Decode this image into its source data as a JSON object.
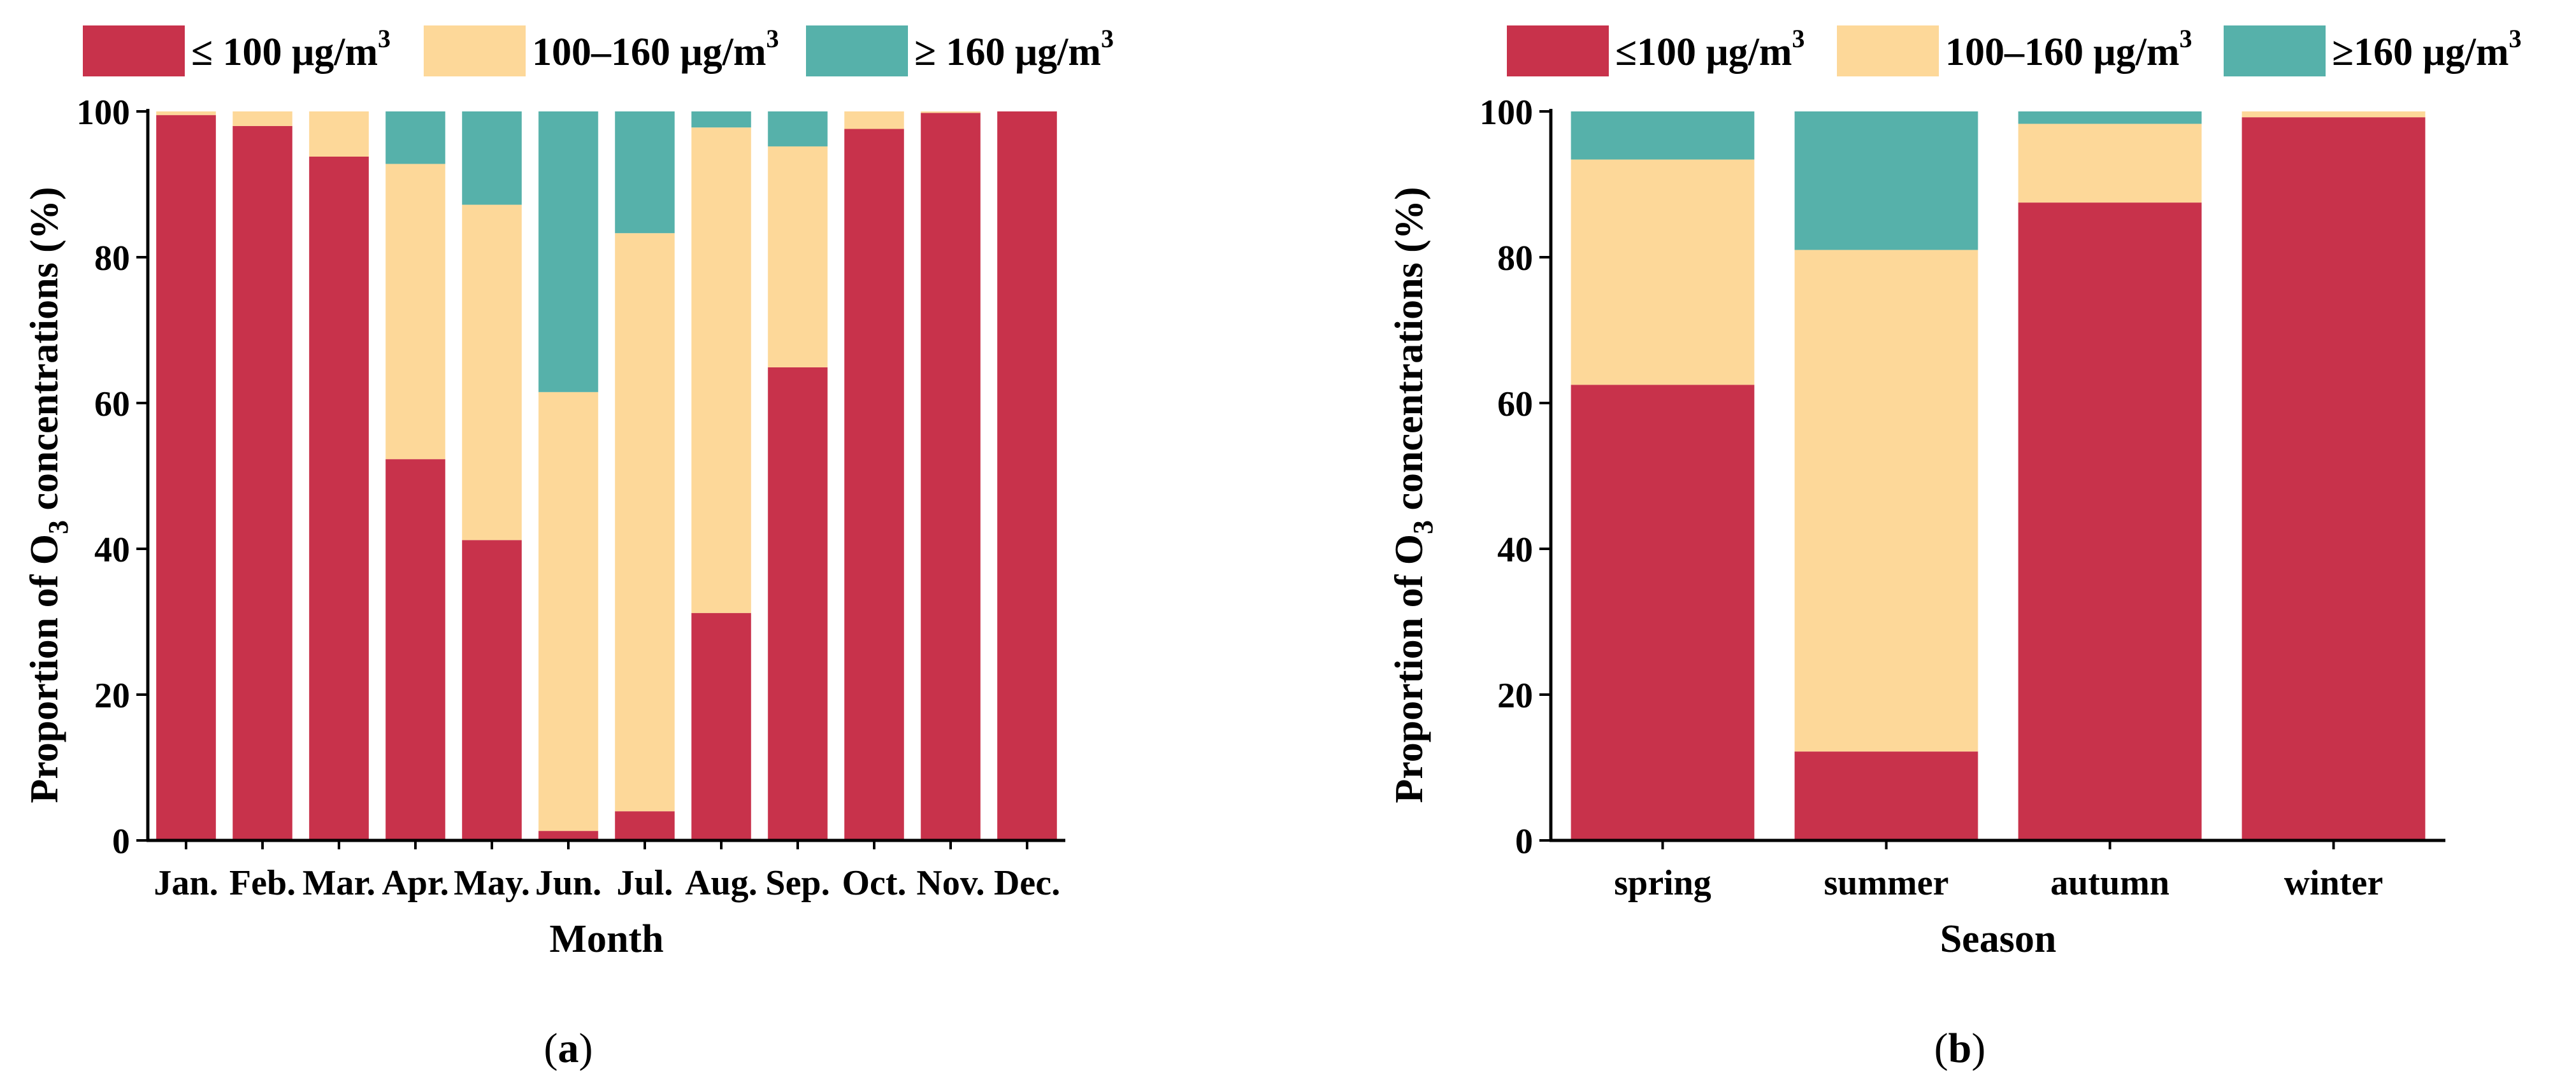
{
  "colors": {
    "low": "#C8324B",
    "mid": "#FDD899",
    "high": "#56B1AA",
    "axis": "#000000"
  },
  "chart_data": [
    {
      "type": "bar",
      "stacked": true,
      "panel_label": "a",
      "title": "",
      "xlabel": "Month",
      "ylabel": "Proportion of O3 concentrations (%)",
      "ylabel_parts": {
        "pre": "Proportion of O",
        "sub": "3",
        "post": " concentrations (%)"
      },
      "ylim": [
        0,
        100
      ],
      "yticks": [
        0,
        20,
        40,
        60,
        80,
        100
      ],
      "categories": [
        "Jan.",
        "Feb.",
        "Mar.",
        "Apr.",
        "May.",
        "Jun.",
        "Jul.",
        "Aug.",
        "Sep.",
        "Oct.",
        "Nov.",
        "Dec."
      ],
      "legend": {
        "position": "top",
        "entries": [
          {
            "pre": "≤ 100 μg/m",
            "sup": "3"
          },
          {
            "pre": "100–160 μg/m",
            "sup": "3"
          },
          {
            "pre": "≥ 160 μg/m",
            "sup": "3"
          }
        ]
      },
      "series": [
        {
          "name": "≤ 100 μg/m3",
          "values": [
            99.5,
            98,
            93.8,
            52.3,
            41.2,
            1.3,
            4,
            31.2,
            64.9,
            97.6,
            99.8,
            100
          ]
        },
        {
          "name": "100–160 μg/m3",
          "values": [
            0.5,
            2,
            6.2,
            40.5,
            46,
            60.2,
            79.3,
            66.6,
            30.3,
            2.4,
            0.2,
            0
          ]
        },
        {
          "name": "≥ 160 μg/m3",
          "values": [
            0,
            0,
            0,
            7.2,
            12.8,
            38.5,
            16.7,
            2.2,
            4.8,
            0,
            0,
            0
          ]
        }
      ]
    },
    {
      "type": "bar",
      "stacked": true,
      "panel_label": "b",
      "title": "",
      "xlabel": "Season",
      "ylabel": "Proportion of O3 concentrations (%)",
      "ylabel_parts": {
        "pre": "Proportion of O",
        "sub": "3",
        "post": " concentrations (%)"
      },
      "ylim": [
        0,
        100
      ],
      "yticks": [
        0,
        20,
        40,
        60,
        80,
        100
      ],
      "categories": [
        "spring",
        "summer",
        "autumn",
        "winter"
      ],
      "legend": {
        "position": "top",
        "entries": [
          {
            "pre": "≤100 μg/m",
            "sup": "3"
          },
          {
            "pre": "100–160 μg/m",
            "sup": "3"
          },
          {
            "pre": "≥160 μg/m",
            "sup": "3"
          }
        ]
      },
      "series": [
        {
          "name": "≤100 μg/m3",
          "values": [
            62.5,
            12.2,
            87.5,
            99.2
          ]
        },
        {
          "name": "100–160 μg/m3",
          "values": [
            30.9,
            68.8,
            10.8,
            0.8
          ]
        },
        {
          "name": "≥160 μg/m3",
          "values": [
            6.6,
            19,
            1.7,
            0
          ]
        }
      ]
    }
  ]
}
